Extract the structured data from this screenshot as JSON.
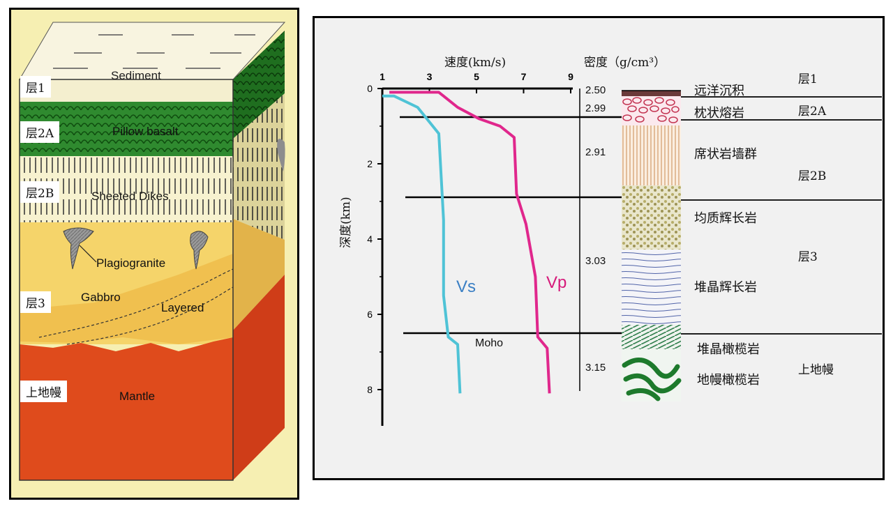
{
  "block_diagram": {
    "labels": {
      "sediment": "Sediment",
      "pillow_basalt": "Pillow basalt",
      "sheeted_dikes": "Sheeted Dikes",
      "plagiogranite": "Plagiogranite",
      "gabbro": "Gabbro",
      "layered": "Layered",
      "mantle": "Mantle"
    },
    "layer_tags": [
      "层1",
      "层2A",
      "层2B",
      "层3",
      "上地幔"
    ]
  },
  "profile": {
    "velocity_title": "速度(km/s)",
    "density_title": "密度（g/cm³）",
    "depth_label": "深度(km)",
    "x_ticks": [
      "1",
      "3",
      "5",
      "7",
      "9"
    ],
    "y_ticks": [
      "0",
      "2",
      "4",
      "6",
      "8"
    ],
    "densities": [
      "2.50",
      "2.99",
      "2.91",
      "3.03",
      "3.15"
    ],
    "vs_label": "Vs",
    "vp_label": "Vp",
    "moho_label": "Moho",
    "rock_names": [
      "远洋沉积",
      "枕状熔岩",
      "席状岩墙群",
      "均质辉长岩",
      "堆晶辉长岩",
      "堆晶橄榄岩",
      "地幔橄榄岩"
    ],
    "layer_names": [
      "层1",
      "层2A",
      "层2B",
      "层3",
      "上地幔"
    ],
    "colors": {
      "vs": "#4fc3d6",
      "vp": "#e0278c",
      "vs_label": "#3a7fc4",
      "vp_label": "#d61a7a"
    }
  },
  "chart_data": {
    "type": "line",
    "title": "速度(km/s)",
    "xlabel": "速度(km/s)",
    "ylabel": "深度(km)",
    "xlim": [
      1,
      9
    ],
    "ylim": [
      0,
      9
    ],
    "series": [
      {
        "name": "Vs",
        "points": [
          [
            1,
            0.2
          ],
          [
            1.5,
            0.2
          ],
          [
            2.5,
            0.5
          ],
          [
            3.4,
            1.2
          ],
          [
            3.6,
            3.5
          ],
          [
            3.6,
            5.5
          ],
          [
            3.8,
            6.6
          ],
          [
            4.2,
            6.8
          ],
          [
            4.3,
            8.1
          ]
        ]
      },
      {
        "name": "Vp",
        "points": [
          [
            1.3,
            0.1
          ],
          [
            3.4,
            0.1
          ],
          [
            4.2,
            0.5
          ],
          [
            5.1,
            0.8
          ],
          [
            6.0,
            1.0
          ],
          [
            6.6,
            1.3
          ],
          [
            6.7,
            2.8
          ],
          [
            7.1,
            3.6
          ],
          [
            7.5,
            5.0
          ],
          [
            7.6,
            6.6
          ],
          [
            8.0,
            6.9
          ],
          [
            8.1,
            8.1
          ]
        ]
      }
    ],
    "moho_depth_km": 6.5
  }
}
